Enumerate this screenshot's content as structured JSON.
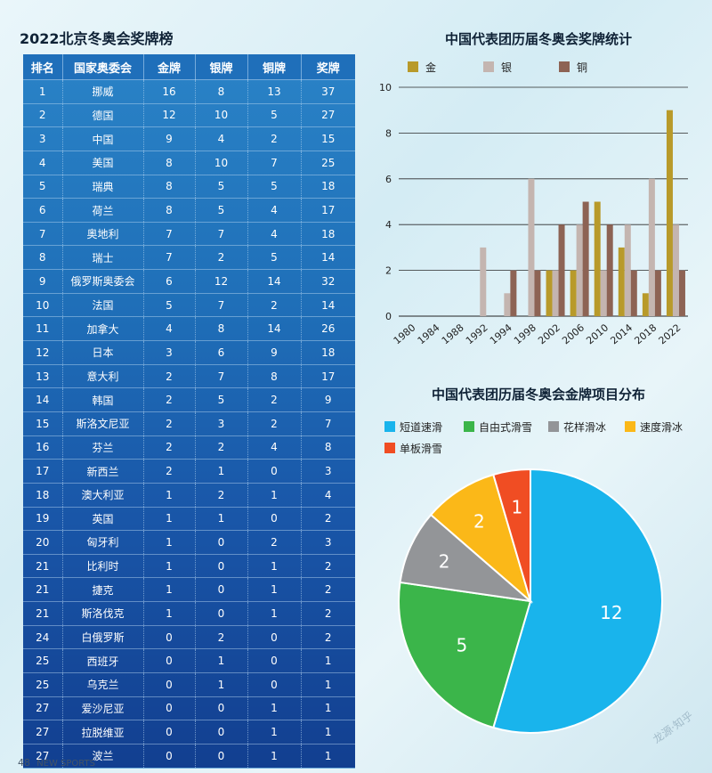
{
  "medal_table": {
    "title": "2022北京冬奥会奖牌榜",
    "columns": [
      "排名",
      "国家奥委会",
      "金牌",
      "银牌",
      "铜牌",
      "奖牌"
    ],
    "rows": [
      [
        "1",
        "挪威",
        "16",
        "8",
        "13",
        "37"
      ],
      [
        "2",
        "德国",
        "12",
        "10",
        "5",
        "27"
      ],
      [
        "3",
        "中国",
        "9",
        "4",
        "2",
        "15"
      ],
      [
        "4",
        "美国",
        "8",
        "10",
        "7",
        "25"
      ],
      [
        "5",
        "瑞典",
        "8",
        "5",
        "5",
        "18"
      ],
      [
        "6",
        "荷兰",
        "8",
        "5",
        "4",
        "17"
      ],
      [
        "7",
        "奥地利",
        "7",
        "7",
        "4",
        "18"
      ],
      [
        "8",
        "瑞士",
        "7",
        "2",
        "5",
        "14"
      ],
      [
        "9",
        "俄罗斯奥委会",
        "6",
        "12",
        "14",
        "32"
      ],
      [
        "10",
        "法国",
        "5",
        "7",
        "2",
        "14"
      ],
      [
        "11",
        "加拿大",
        "4",
        "8",
        "14",
        "26"
      ],
      [
        "12",
        "日本",
        "3",
        "6",
        "9",
        "18"
      ],
      [
        "13",
        "意大利",
        "2",
        "7",
        "8",
        "17"
      ],
      [
        "14",
        "韩国",
        "2",
        "5",
        "2",
        "9"
      ],
      [
        "15",
        "斯洛文尼亚",
        "2",
        "3",
        "2",
        "7"
      ],
      [
        "16",
        "芬兰",
        "2",
        "2",
        "4",
        "8"
      ],
      [
        "17",
        "新西兰",
        "2",
        "1",
        "0",
        "3"
      ],
      [
        "18",
        "澳大利亚",
        "1",
        "2",
        "1",
        "4"
      ],
      [
        "19",
        "英国",
        "1",
        "1",
        "0",
        "2"
      ],
      [
        "20",
        "匈牙利",
        "1",
        "0",
        "2",
        "3"
      ],
      [
        "21",
        "比利时",
        "1",
        "0",
        "1",
        "2"
      ],
      [
        "21",
        "捷克",
        "1",
        "0",
        "1",
        "2"
      ],
      [
        "21",
        "斯洛伐克",
        "1",
        "0",
        "1",
        "2"
      ],
      [
        "24",
        "白俄罗斯",
        "0",
        "2",
        "0",
        "2"
      ],
      [
        "25",
        "西班牙",
        "0",
        "1",
        "0",
        "1"
      ],
      [
        "25",
        "乌克兰",
        "0",
        "1",
        "0",
        "1"
      ],
      [
        "27",
        "爱沙尼亚",
        "0",
        "0",
        "1",
        "1"
      ],
      [
        "27",
        "拉脱维亚",
        "0",
        "0",
        "1",
        "1"
      ],
      [
        "27",
        "波兰",
        "0",
        "0",
        "1",
        "1"
      ]
    ]
  },
  "footer": {
    "page_number": "48",
    "magazine": "NEW SPORTS",
    "watermark": "龙源·知乎"
  },
  "chart_data": [
    {
      "type": "bar",
      "title": "中国代表团历届冬奥会奖牌统计",
      "categories": [
        "1980",
        "1984",
        "1988",
        "1992",
        "1994",
        "1998",
        "2002",
        "2006",
        "2010",
        "2014",
        "2018",
        "2022"
      ],
      "series": [
        {
          "name": "金",
          "color": "#b89a2a",
          "values": [
            0,
            0,
            0,
            0,
            0,
            0,
            2,
            2,
            5,
            3,
            1,
            9
          ]
        },
        {
          "name": "银",
          "color": "#c4b5b0",
          "values": [
            0,
            0,
            0,
            3,
            1,
            6,
            2,
            4,
            2,
            4,
            6,
            4
          ]
        },
        {
          "name": "铜",
          "color": "#8d6354",
          "values": [
            0,
            0,
            0,
            0,
            2,
            2,
            4,
            5,
            4,
            2,
            2,
            2
          ]
        }
      ],
      "ylim": [
        0,
        10
      ],
      "yticks": [
        0,
        2,
        4,
        6,
        8,
        10
      ],
      "legend": "top",
      "grid": true
    },
    {
      "type": "pie",
      "title": "中国代表团历届冬奥会金牌项目分布",
      "slices": [
        {
          "label": "短道速滑",
          "value": 12,
          "color": "#19b4ec"
        },
        {
          "label": "自由式滑雪",
          "value": 5,
          "color": "#3bb54a"
        },
        {
          "label": "花样滑冰",
          "value": 2,
          "color": "#939598"
        },
        {
          "label": "速度滑冰",
          "value": 2,
          "color": "#fbb818"
        },
        {
          "label": "单板滑雪",
          "value": 1,
          "color": "#f04d23"
        }
      ],
      "legend": "top"
    }
  ]
}
